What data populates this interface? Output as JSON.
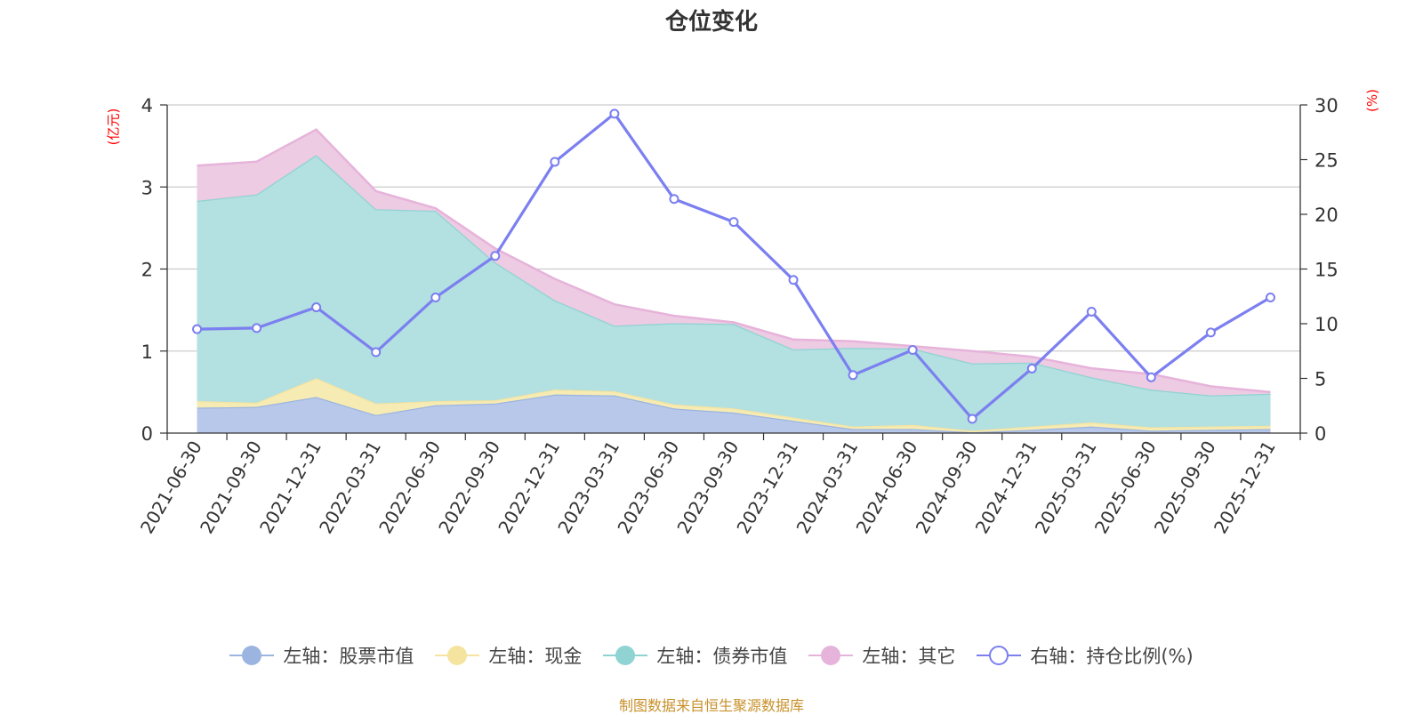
{
  "chart_data": {
    "type": "area",
    "title": "仓位变化",
    "left_unit": "(亿元)",
    "right_unit": "(%)",
    "left_ylim": [
      0,
      4
    ],
    "right_ylim": [
      0,
      30
    ],
    "left_ticks": [
      "0",
      "1",
      "2",
      "3",
      "4"
    ],
    "right_ticks": [
      "0",
      "5",
      "10",
      "15",
      "20",
      "25",
      "30"
    ],
    "categories": [
      "2021-06-30",
      "2021-09-30",
      "2021-12-31",
      "2022-03-31",
      "2022-06-30",
      "2022-09-30",
      "2022-12-31",
      "2023-03-31",
      "2023-06-30",
      "2023-09-30",
      "2023-12-31",
      "2024-03-31",
      "2024-06-30",
      "2024-09-30",
      "2024-12-31",
      "2025-03-31",
      "2025-06-30",
      "2025-09-30",
      "2025-12-31"
    ],
    "stacked_series": [
      {
        "name": "左轴：股票市值",
        "color": "#9bb5e0",
        "fill": "#b8c8ea",
        "values": [
          0.31,
          0.32,
          0.44,
          0.22,
          0.34,
          0.36,
          0.47,
          0.46,
          0.3,
          0.25,
          0.15,
          0.05,
          0.05,
          0.01,
          0.04,
          0.08,
          0.03,
          0.04,
          0.05
        ]
      },
      {
        "name": "左轴：现金",
        "color": "#f5e4a0",
        "fill": "#f7ebb4",
        "values": [
          0.08,
          0.05,
          0.23,
          0.14,
          0.05,
          0.04,
          0.06,
          0.05,
          0.05,
          0.05,
          0.04,
          0.03,
          0.05,
          0.02,
          0.04,
          0.05,
          0.04,
          0.04,
          0.04
        ]
      },
      {
        "name": "左轴：债券市值",
        "color": "#8fd3d3",
        "fill": "#b3e0e0",
        "values": [
          2.44,
          2.54,
          2.72,
          2.37,
          2.32,
          1.68,
          1.09,
          0.8,
          0.99,
          1.03,
          0.83,
          0.96,
          0.93,
          0.82,
          0.78,
          0.55,
          0.46,
          0.38,
          0.39
        ]
      },
      {
        "name": "左轴：其它",
        "color": "#e6b3da",
        "fill": "#edcbe3",
        "values": [
          0.43,
          0.4,
          0.31,
          0.22,
          0.03,
          0.17,
          0.26,
          0.26,
          0.09,
          0.02,
          0.12,
          0.08,
          0.03,
          0.15,
          0.07,
          0.11,
          0.19,
          0.11,
          0.02
        ]
      }
    ],
    "line_series": {
      "name": "右轴：持仓比例(%)",
      "color": "#7b7ff0",
      "values": [
        9.5,
        9.6,
        11.5,
        7.4,
        12.4,
        16.2,
        24.8,
        29.2,
        21.4,
        19.3,
        14.0,
        5.3,
        7.6,
        1.3,
        5.9,
        11.1,
        5.1,
        9.2,
        12.4
      ]
    },
    "legend": [
      "左轴：股票市值",
      "左轴：现金",
      "左轴：债券市值",
      "左轴：其它",
      "右轴：持仓比例(%)"
    ]
  },
  "footer": "制图数据来自恒生聚源数据库"
}
